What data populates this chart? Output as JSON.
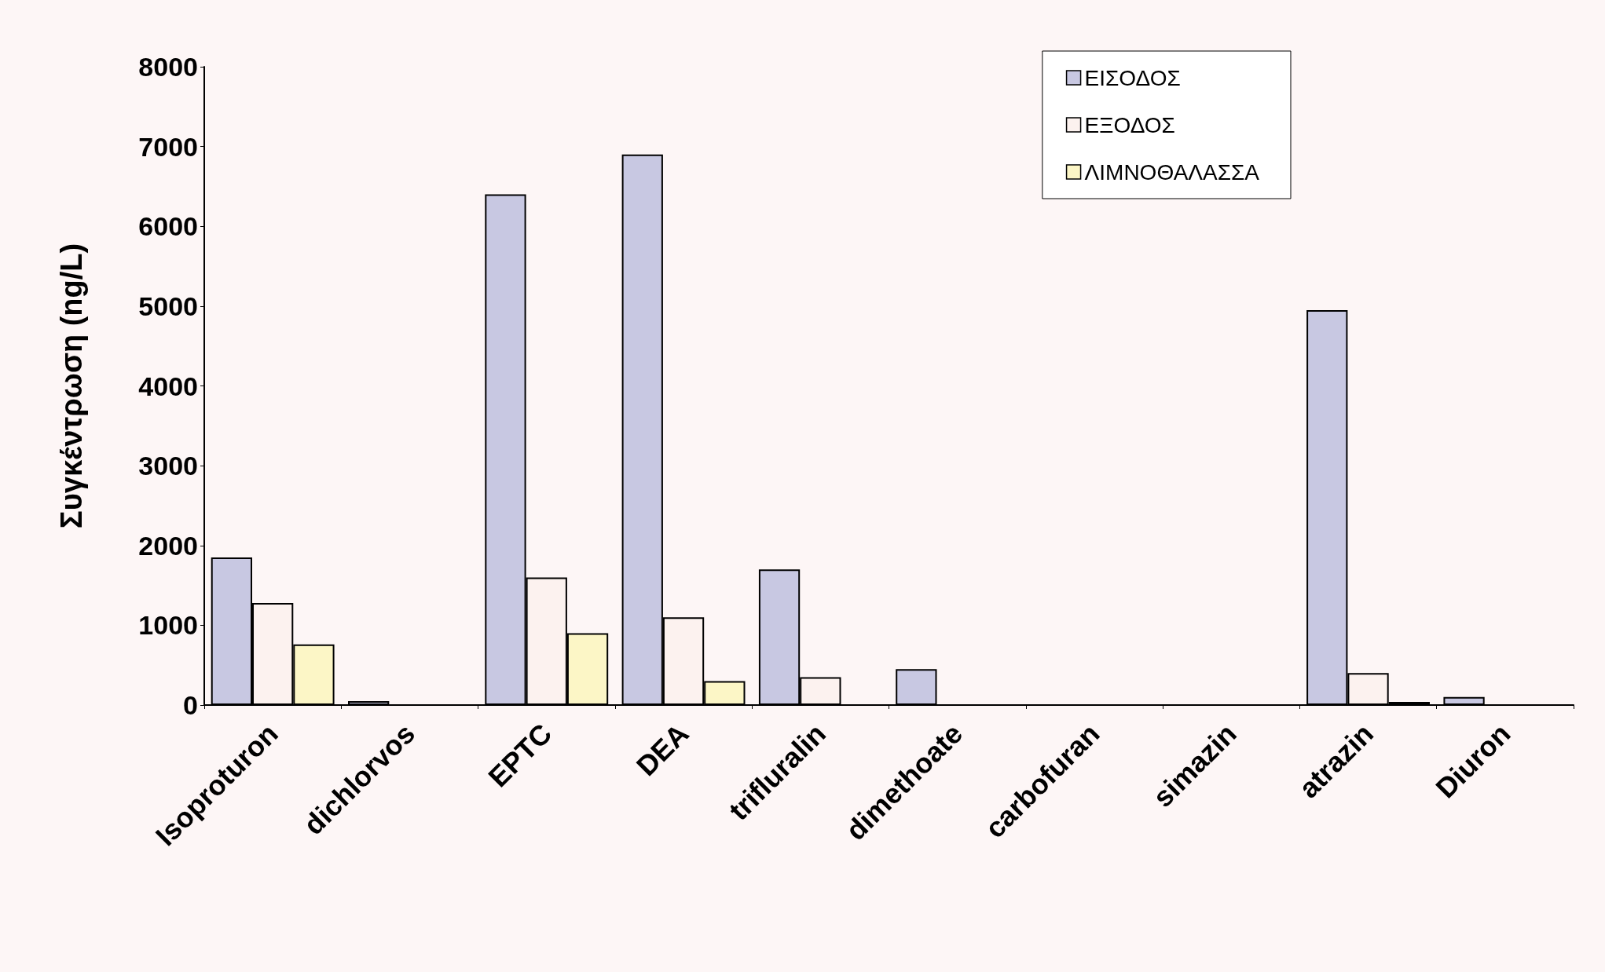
{
  "chart_data": {
    "type": "bar",
    "ylabel": "Συγκέντρωση (ng/L)",
    "categories": [
      "Isoproturon",
      "dichlorvos",
      "EPTC",
      "DEA",
      "trifluralin",
      "dimethoate",
      "carbofuran",
      "simazin",
      "atrazin",
      "Diuron"
    ],
    "series": [
      {
        "name": "ΕΙΣΟΔΟΣ",
        "color": "#c8c8e2",
        "values": [
          1850,
          50,
          6400,
          6900,
          1700,
          450,
          null,
          null,
          4950,
          100
        ]
      },
      {
        "name": "ΕΞΟΔΟΣ",
        "color": "#fcf2ef",
        "values": [
          1280,
          null,
          1600,
          1100,
          350,
          null,
          null,
          null,
          400,
          null
        ]
      },
      {
        "name": "ΛΙΜΝΟΘΑΛΑΣΣΑ",
        "color": "#fcf6c6",
        "values": [
          760,
          null,
          900,
          300,
          null,
          null,
          null,
          null,
          40,
          null
        ]
      }
    ],
    "ylim": [
      0,
      8000
    ],
    "yticks": [
      0,
      1000,
      2000,
      3000,
      4000,
      5000,
      6000,
      7000,
      8000
    ],
    "grid": false,
    "legend": "top right"
  }
}
